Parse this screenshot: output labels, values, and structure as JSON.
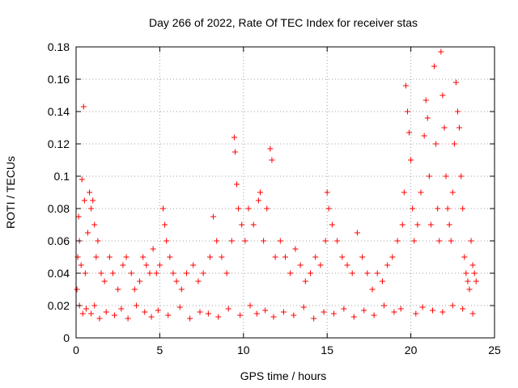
{
  "chart_data": {
    "type": "scatter",
    "title": "Day 266 of 2022, Rate Of TEC Index for receiver stas",
    "xlabel": "GPS time / hours",
    "ylabel": "ROTI / TECUs",
    "xlim": [
      0,
      25
    ],
    "ylim": [
      0,
      0.18
    ],
    "x_ticks": [
      "0",
      "5",
      "10",
      "15",
      "20",
      "25"
    ],
    "y_ticks": [
      "0",
      "0.02",
      "0.04",
      "0.06",
      "0.08",
      "0.1",
      "0.12",
      "0.14",
      "0.16",
      "0.18"
    ],
    "grid": true,
    "marker": "plus",
    "color": "#ff0000",
    "series": [
      {
        "x": [
          0.05,
          0.1,
          0.15,
          0.2,
          0.3,
          0.35,
          0.45,
          0.5,
          0.55,
          0.7,
          0.8,
          0.9,
          1.0,
          1.1,
          1.2,
          1.3,
          1.5,
          1.7,
          2.0,
          2.2,
          2.5,
          2.8,
          3.0,
          3.3,
          3.5,
          3.8,
          4.0,
          4.2,
          4.4,
          4.6,
          4.8,
          5.0,
          5.2,
          5.3,
          5.4,
          5.6,
          5.8,
          6.0,
          6.3,
          6.6,
          7.0,
          7.3,
          7.6,
          8.0,
          8.2,
          8.4,
          8.7,
          9.0,
          9.3,
          9.45,
          9.5,
          9.6,
          9.7,
          9.9,
          10.1,
          10.3,
          10.6,
          10.9,
          11.0,
          11.2,
          11.4,
          11.6,
          11.7,
          11.9,
          12.2,
          12.5,
          12.8,
          13.1,
          13.4,
          13.7,
          14.0,
          14.3,
          14.6,
          14.9,
          15.0,
          15.1,
          15.3,
          15.6,
          15.9,
          16.2,
          16.5,
          16.8,
          17.1,
          17.4,
          17.7,
          18.0,
          18.3,
          18.6,
          18.9,
          19.2,
          19.5,
          19.6,
          19.7,
          19.8,
          19.9,
          20.0,
          20.1,
          20.2,
          20.4,
          20.6,
          20.8,
          20.9,
          21.0,
          21.1,
          21.2,
          21.4,
          21.5,
          21.6,
          21.7,
          21.8,
          21.9,
          22.0,
          22.1,
          22.2,
          22.3,
          22.4,
          22.5,
          22.6,
          22.7,
          22.8,
          22.9,
          23.0,
          23.1,
          23.2,
          23.3,
          23.4,
          23.5,
          23.6,
          23.7,
          23.8,
          23.9,
          0.2,
          0.4,
          0.6,
          0.9,
          1.1,
          1.4,
          1.8,
          2.3,
          2.7,
          3.1,
          3.6,
          4.1,
          4.5,
          4.9,
          5.5,
          6.2,
          6.8,
          7.4,
          7.9,
          8.5,
          9.1,
          9.8,
          10.4,
          10.8,
          11.3,
          11.8,
          12.4,
          13.0,
          13.6,
          14.2,
          14.8,
          15.4,
          16.0,
          16.6,
          17.2,
          17.8,
          18.4,
          19.0,
          19.4,
          20.3,
          20.7,
          21.3,
          21.9,
          22.5,
          23.1,
          23.7
        ],
        "y": [
          0.03,
          0.05,
          0.075,
          0.06,
          0.045,
          0.098,
          0.143,
          0.085,
          0.04,
          0.065,
          0.09,
          0.08,
          0.085,
          0.07,
          0.05,
          0.06,
          0.04,
          0.035,
          0.05,
          0.04,
          0.03,
          0.045,
          0.05,
          0.04,
          0.03,
          0.035,
          0.05,
          0.045,
          0.04,
          0.055,
          0.04,
          0.045,
          0.08,
          0.07,
          0.06,
          0.05,
          0.04,
          0.035,
          0.03,
          0.04,
          0.045,
          0.035,
          0.04,
          0.05,
          0.075,
          0.06,
          0.05,
          0.04,
          0.06,
          0.124,
          0.115,
          0.095,
          0.08,
          0.07,
          0.06,
          0.08,
          0.07,
          0.085,
          0.09,
          0.06,
          0.08,
          0.117,
          0.11,
          0.05,
          0.06,
          0.05,
          0.04,
          0.055,
          0.045,
          0.035,
          0.04,
          0.05,
          0.045,
          0.06,
          0.09,
          0.08,
          0.07,
          0.06,
          0.05,
          0.045,
          0.04,
          0.065,
          0.05,
          0.04,
          0.03,
          0.04,
          0.035,
          0.045,
          0.05,
          0.06,
          0.07,
          0.09,
          0.156,
          0.14,
          0.127,
          0.11,
          0.08,
          0.06,
          0.07,
          0.09,
          0.125,
          0.147,
          0.136,
          0.1,
          0.07,
          0.168,
          0.12,
          0.08,
          0.06,
          0.177,
          0.15,
          0.13,
          0.1,
          0.08,
          0.07,
          0.06,
          0.09,
          0.12,
          0.158,
          0.14,
          0.13,
          0.1,
          0.08,
          0.05,
          0.04,
          0.035,
          0.03,
          0.06,
          0.045,
          0.04,
          0.035,
          0.02,
          0.015,
          0.018,
          0.015,
          0.02,
          0.012,
          0.016,
          0.014,
          0.018,
          0.012,
          0.02,
          0.016,
          0.013,
          0.017,
          0.014,
          0.019,
          0.012,
          0.016,
          0.015,
          0.013,
          0.018,
          0.014,
          0.02,
          0.015,
          0.017,
          0.013,
          0.016,
          0.014,
          0.019,
          0.012,
          0.016,
          0.015,
          0.018,
          0.013,
          0.017,
          0.014,
          0.02,
          0.016,
          0.018,
          0.015,
          0.019,
          0.017,
          0.016,
          0.02,
          0.018,
          0.015
        ]
      }
    ]
  }
}
